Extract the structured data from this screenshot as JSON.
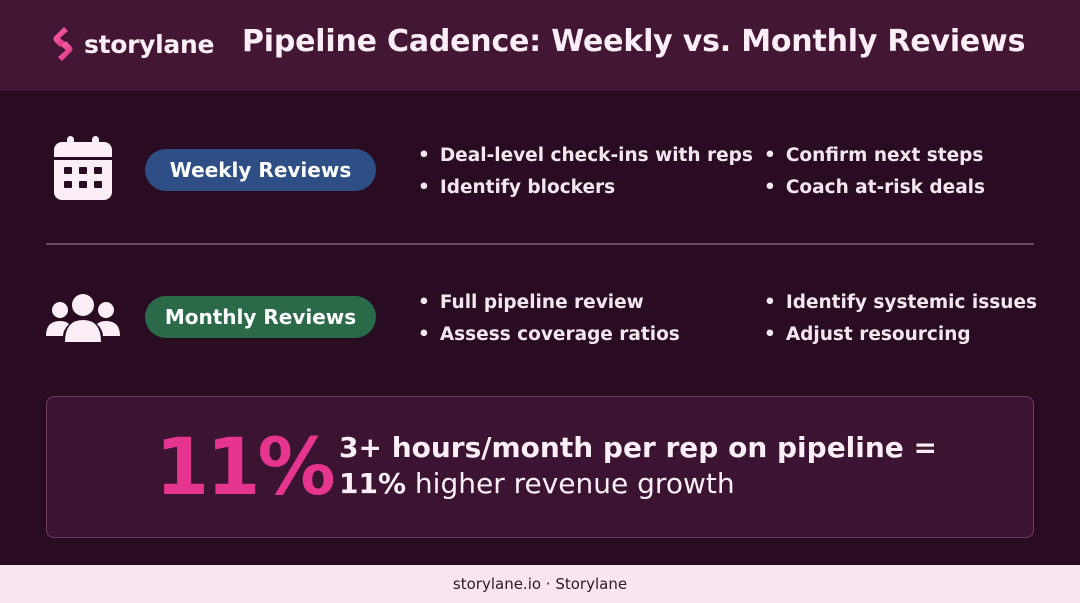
{
  "header": {
    "brand": "storylane",
    "title": "Pipeline Cadence: Weekly vs. Monthly Reviews"
  },
  "weekly": {
    "icon": "calendar-icon",
    "label": "Weekly Reviews",
    "color": "#2d4f86",
    "bullets": [
      "Deal-level check-ins with reps",
      "Identify blockers",
      "Confirm next steps",
      "Coach at-risk deals"
    ]
  },
  "monthly": {
    "icon": "team-icon",
    "label": "Monthly Reviews",
    "color": "#2a6a49",
    "bullets": [
      "Full pipeline review",
      "Assess coverage ratios",
      "Identify systemic issues",
      "Adjust resourcing"
    ]
  },
  "stat": {
    "big": "11%",
    "line1": "3+ hours/month per rep on pipeline =",
    "line2_bold": "11%",
    "line2_rest": " higher revenue growth",
    "accent": "#e5358e"
  },
  "footer": {
    "text": "storylane.io · Storylane"
  }
}
